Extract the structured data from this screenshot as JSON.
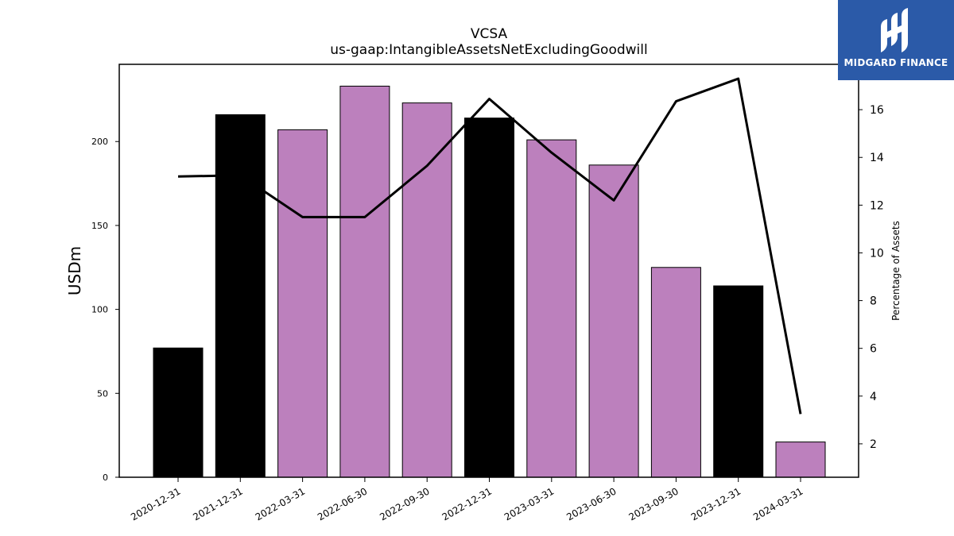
{
  "brand": {
    "name": "MIDGARD FINANCE",
    "bg_color": "#2b5aa8"
  },
  "chart_data": {
    "type": "bar",
    "title": "VCSA",
    "subtitle": "us-gaap:IntangibleAssetsNetExcludingGoodwill",
    "ylabel": "USDm",
    "y2label": "Percentage of Assets",
    "categories": [
      "2020-12-31",
      "2021-12-31",
      "2022-03-31",
      "2022-06-30",
      "2022-09-30",
      "2022-12-31",
      "2023-03-31",
      "2023-06-30",
      "2023-09-30",
      "2023-12-31",
      "2024-03-31"
    ],
    "bar_colors": [
      "#000000",
      "#000000",
      "#bc80bd",
      "#bc80bd",
      "#bc80bd",
      "#000000",
      "#bc80bd",
      "#bc80bd",
      "#bc80bd",
      "#000000",
      "#bc80bd"
    ],
    "series": [
      {
        "type": "bar",
        "axis": "left",
        "values": [
          77,
          216,
          207,
          233,
          223,
          214,
          201,
          186,
          125,
          114,
          21
        ]
      },
      {
        "type": "line",
        "axis": "right",
        "color": "#000000",
        "values": [
          13.2,
          13.25,
          11.5,
          11.5,
          13.65,
          16.45,
          14.2,
          12.2,
          16.35,
          17.3,
          3.25
        ]
      }
    ],
    "ylim": [
      0,
      246
    ],
    "yticks": [
      0,
      50,
      100,
      150,
      200
    ],
    "y2lim": [
      0.6,
      17.9
    ],
    "y2ticks": [
      2,
      4,
      6,
      8,
      10,
      12,
      14,
      16
    ],
    "grid": false,
    "legend": "none"
  }
}
